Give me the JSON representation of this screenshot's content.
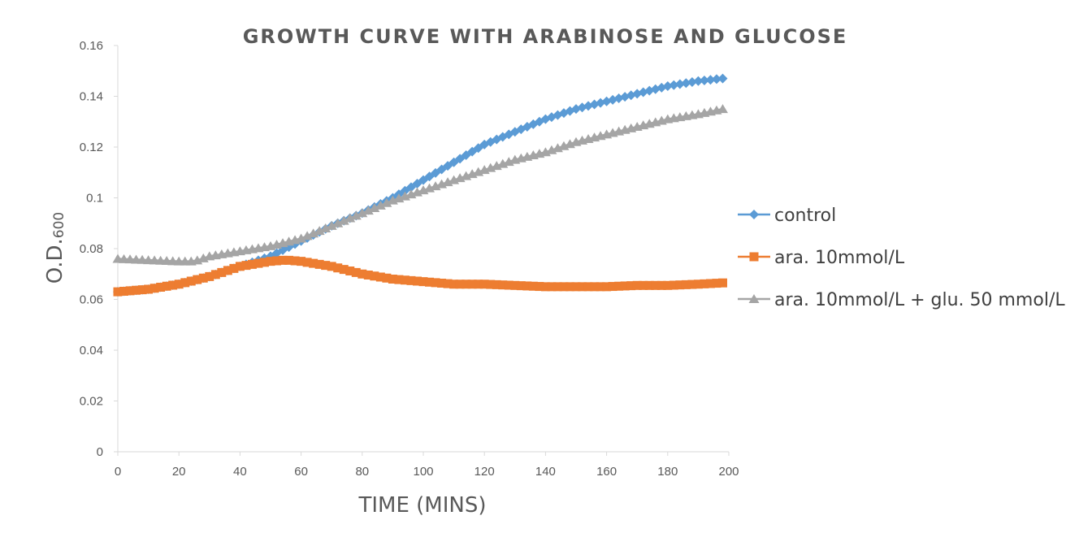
{
  "chart_data": {
    "type": "line",
    "title": "GROWTH CURVE WITH ARABINOSE AND GLUCOSE",
    "xlabel": "TIME (MINS)",
    "ylabel": "O.D.",
    "ylabel_subscript": "600",
    "xlim": [
      0,
      200
    ],
    "ylim": [
      0,
      0.16
    ],
    "xticks": [
      "0",
      "20",
      "40",
      "60",
      "80",
      "100",
      "120",
      "140",
      "160",
      "180",
      "200"
    ],
    "yticks": [
      "0",
      "0.02",
      "0.04",
      "0.06",
      "0.08",
      "0.1",
      "0.12",
      "0.14",
      "0.16"
    ],
    "grid": false,
    "legend_position": "right",
    "series": [
      {
        "name": "control",
        "color": "#5B9BD5",
        "marker": "diamond",
        "anchors": [
          [
            0,
            0.063
          ],
          [
            10,
            0.064
          ],
          [
            20,
            0.066
          ],
          [
            30,
            0.069
          ],
          [
            40,
            0.073
          ],
          [
            50,
            0.077
          ],
          [
            60,
            0.083
          ],
          [
            70,
            0.089
          ],
          [
            80,
            0.094
          ],
          [
            90,
            0.1
          ],
          [
            100,
            0.107
          ],
          [
            110,
            0.114
          ],
          [
            120,
            0.121
          ],
          [
            130,
            0.126
          ],
          [
            140,
            0.131
          ],
          [
            150,
            0.135
          ],
          [
            160,
            0.138
          ],
          [
            170,
            0.141
          ],
          [
            180,
            0.144
          ],
          [
            190,
            0.146
          ],
          [
            198,
            0.147
          ]
        ]
      },
      {
        "name": "ara. 10mmol/L",
        "color": "#ED7D31",
        "marker": "square",
        "anchors": [
          [
            0,
            0.063
          ],
          [
            10,
            0.064
          ],
          [
            20,
            0.066
          ],
          [
            30,
            0.069
          ],
          [
            40,
            0.073
          ],
          [
            50,
            0.075
          ],
          [
            55,
            0.0755
          ],
          [
            60,
            0.075
          ],
          [
            70,
            0.073
          ],
          [
            80,
            0.07
          ],
          [
            90,
            0.068
          ],
          [
            100,
            0.067
          ],
          [
            110,
            0.066
          ],
          [
            120,
            0.066
          ],
          [
            130,
            0.0655
          ],
          [
            140,
            0.065
          ],
          [
            150,
            0.065
          ],
          [
            160,
            0.065
          ],
          [
            170,
            0.0655
          ],
          [
            180,
            0.0655
          ],
          [
            190,
            0.066
          ],
          [
            198,
            0.0665
          ]
        ]
      },
      {
        "name": "ara. 10mmol/L + glu. 50 mmol/L",
        "color": "#A5A5A5",
        "marker": "triangle",
        "anchors": [
          [
            0,
            0.076
          ],
          [
            10,
            0.0755
          ],
          [
            20,
            0.075
          ],
          [
            25,
            0.075
          ],
          [
            30,
            0.077
          ],
          [
            40,
            0.079
          ],
          [
            50,
            0.081
          ],
          [
            60,
            0.084
          ],
          [
            70,
            0.089
          ],
          [
            80,
            0.094
          ],
          [
            90,
            0.099
          ],
          [
            100,
            0.103
          ],
          [
            110,
            0.107
          ],
          [
            120,
            0.111
          ],
          [
            130,
            0.115
          ],
          [
            140,
            0.118
          ],
          [
            150,
            0.122
          ],
          [
            160,
            0.125
          ],
          [
            170,
            0.128
          ],
          [
            180,
            0.131
          ],
          [
            190,
            0.133
          ],
          [
            198,
            0.135
          ]
        ]
      }
    ],
    "sampling_interval_min": 2
  }
}
